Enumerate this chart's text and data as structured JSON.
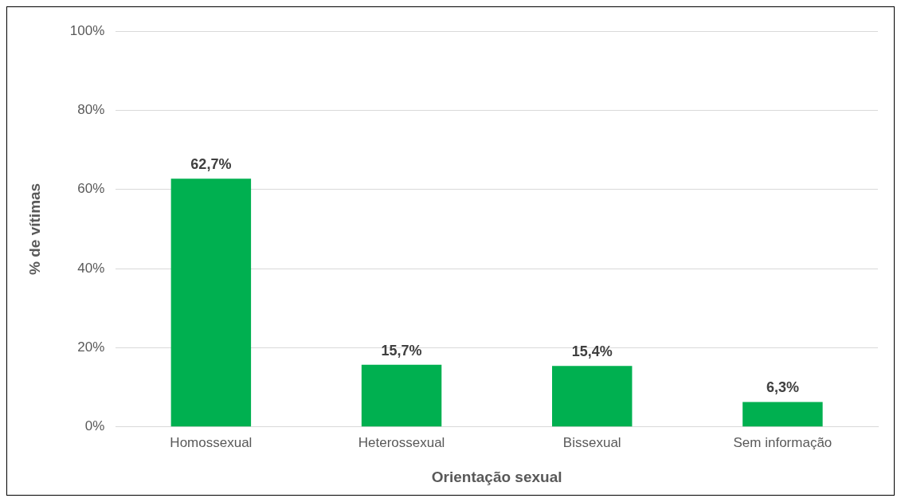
{
  "chart_data": {
    "type": "bar",
    "xlabel": "Orientação sexual",
    "ylabel": "% de vítimas",
    "categories": [
      "Homossexual",
      "Heterossexual",
      "Bissexual",
      "Sem informação"
    ],
    "values": [
      62.7,
      15.7,
      15.4,
      6.3
    ],
    "value_labels": [
      "62,7%",
      "15,7%",
      "15,4%",
      "6,3%"
    ],
    "color": "#00b050",
    "ylim": [
      0,
      100
    ],
    "yticks": [
      {
        "value": 0,
        "label": "0%"
      },
      {
        "value": 20,
        "label": "20%"
      },
      {
        "value": 40,
        "label": "40%"
      },
      {
        "value": 60,
        "label": "60%"
      },
      {
        "value": 80,
        "label": "80%"
      },
      {
        "value": 100,
        "label": "100%"
      }
    ],
    "grid": "y"
  }
}
